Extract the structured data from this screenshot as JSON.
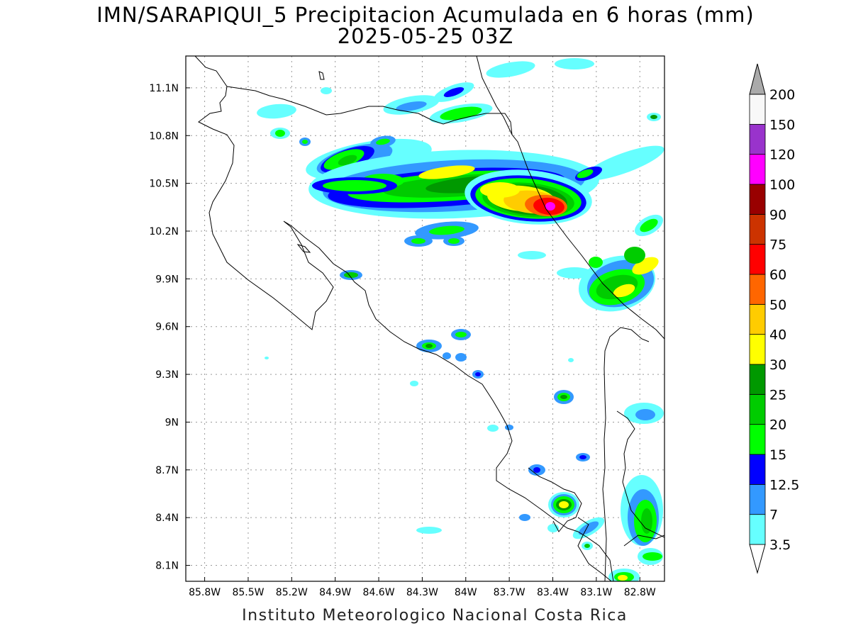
{
  "title": "IMN/SARAPIQUI_5 Precipitacion Acumulada en 6 horas (mm)",
  "subtitle": "2025-05-25 03Z",
  "footer": "Instituto Meteorologico Nacional Costa Rica",
  "map": {
    "lon_range": [
      -85.93,
      -82.63
    ],
    "lat_range": [
      8.0,
      11.3
    ],
    "lon_ticks": [
      {
        "value": -85.8,
        "label": "85.8W"
      },
      {
        "value": -85.5,
        "label": "85.5W"
      },
      {
        "value": -85.2,
        "label": "85.2W"
      },
      {
        "value": -84.9,
        "label": "84.9W"
      },
      {
        "value": -84.6,
        "label": "84.6W"
      },
      {
        "value": -84.3,
        "label": "84.3W"
      },
      {
        "value": -84.0,
        "label": "84W"
      },
      {
        "value": -83.7,
        "label": "83.7W"
      },
      {
        "value": -83.4,
        "label": "83.4W"
      },
      {
        "value": -83.1,
        "label": "83.1W"
      },
      {
        "value": -82.8,
        "label": "82.8W"
      }
    ],
    "lat_ticks": [
      {
        "value": 11.1,
        "label": "11.1N"
      },
      {
        "value": 10.8,
        "label": "10.8N"
      },
      {
        "value": 10.5,
        "label": "10.5N"
      },
      {
        "value": 10.2,
        "label": "10.2N"
      },
      {
        "value": 9.9,
        "label": "9.9N"
      },
      {
        "value": 9.6,
        "label": "9.6N"
      },
      {
        "value": 9.3,
        "label": "9.3N"
      },
      {
        "value": 9.0,
        "label": "9N"
      },
      {
        "value": 8.7,
        "label": "8.7N"
      },
      {
        "value": 8.4,
        "label": "8.4N"
      },
      {
        "value": 8.1,
        "label": "8.1N"
      }
    ]
  },
  "legend": {
    "levels": [
      {
        "label": "3.5",
        "color": "#66ffff"
      },
      {
        "label": "7",
        "color": "#3399ff"
      },
      {
        "label": "12.5",
        "color": "#0000ff"
      },
      {
        "label": "15",
        "color": "#00ff00"
      },
      {
        "label": "20",
        "color": "#00cc00"
      },
      {
        "label": "25",
        "color": "#009900"
      },
      {
        "label": "30",
        "color": "#ffff00"
      },
      {
        "label": "40",
        "color": "#ffcc00"
      },
      {
        "label": "50",
        "color": "#ff6600"
      },
      {
        "label": "60",
        "color": "#ff0000"
      },
      {
        "label": "75",
        "color": "#cc3300"
      },
      {
        "label": "90",
        "color": "#990000"
      },
      {
        "label": "100",
        "color": "#ff00ff"
      },
      {
        "label": "120",
        "color": "#9933cc"
      },
      {
        "label": "150",
        "color": "#f8f8f8"
      },
      {
        "label": "200",
        "color": "#aaaaaa"
      }
    ]
  },
  "colors": {
    "c0": "#66ffff",
    "c1": "#3399ff",
    "c2": "#0000ff",
    "c3": "#00ff00",
    "c4": "#00cc00",
    "c5": "#009900",
    "c6": "#ffff00",
    "c7": "#ffcc00",
    "c8": "#ff6600",
    "c9": "#ff0000",
    "c12": "#ff00ff"
  }
}
